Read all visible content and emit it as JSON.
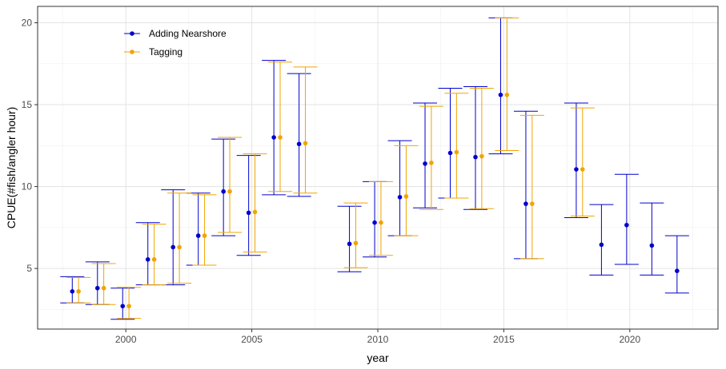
{
  "chart_data": {
    "type": "scatter",
    "xlabel": "year",
    "ylabel": "CPUE(#fish/angler hour)",
    "xlim": [
      1996.5,
      2023.5
    ],
    "ylim": [
      1.3,
      21.0
    ],
    "x_ticks": [
      2000,
      2005,
      2010,
      2015,
      2020
    ],
    "y_ticks": [
      5,
      10,
      15,
      20
    ],
    "x_tick_labels": [
      "2000",
      "2005",
      "2010",
      "2015",
      "2020"
    ],
    "y_tick_labels": [
      "5",
      "10",
      "15",
      "20"
    ],
    "grid": true,
    "legend_position": "top-left",
    "dodge": 0.25,
    "series": [
      {
        "name": "Adding Nearshore",
        "color": "#0000CC",
        "points": [
          {
            "x": 1998,
            "y": 3.6,
            "low": 2.9,
            "high": 4.5
          },
          {
            "x": 1999,
            "y": 3.8,
            "low": 2.8,
            "high": 5.4
          },
          {
            "x": 2000,
            "y": 2.7,
            "low": 1.9,
            "high": 3.8
          },
          {
            "x": 2001,
            "y": 5.55,
            "low": 4.0,
            "high": 7.8
          },
          {
            "x": 2002,
            "y": 6.3,
            "low": 4.0,
            "high": 9.8
          },
          {
            "x": 2003,
            "y": 7.0,
            "low": 5.2,
            "high": 9.6
          },
          {
            "x": 2004,
            "y": 9.7,
            "low": 7.0,
            "high": 12.9
          },
          {
            "x": 2005,
            "y": 8.4,
            "low": 5.8,
            "high": 11.9
          },
          {
            "x": 2006,
            "y": 13.0,
            "low": 9.5,
            "high": 17.7
          },
          {
            "x": 2007,
            "y": 12.6,
            "low": 9.4,
            "high": 16.9
          },
          {
            "x": 2009,
            "y": 6.5,
            "low": 4.8,
            "high": 8.8
          },
          {
            "x": 2010,
            "y": 7.8,
            "low": 5.7,
            "high": 10.3
          },
          {
            "x": 2011,
            "y": 9.35,
            "low": 7.0,
            "high": 12.8
          },
          {
            "x": 2012,
            "y": 11.4,
            "low": 8.7,
            "high": 15.1
          },
          {
            "x": 2013,
            "y": 12.05,
            "low": 9.3,
            "high": 16.0
          },
          {
            "x": 2014,
            "y": 11.8,
            "low": 8.6,
            "high": 16.1
          },
          {
            "x": 2015,
            "y": 15.6,
            "low": 12.0,
            "high": 20.3
          },
          {
            "x": 2016,
            "y": 8.95,
            "low": 5.6,
            "high": 14.6
          },
          {
            "x": 2018,
            "y": 11.05,
            "low": 8.1,
            "high": 15.1
          },
          {
            "x": 2019,
            "y": 6.45,
            "low": 4.6,
            "high": 8.9
          },
          {
            "x": 2020,
            "y": 7.65,
            "low": 5.25,
            "high": 10.75
          },
          {
            "x": 2021,
            "y": 6.4,
            "low": 4.6,
            "high": 9.0
          },
          {
            "x": 2022,
            "y": 4.85,
            "low": 3.5,
            "high": 7.0
          }
        ]
      },
      {
        "name": "Tagging",
        "color": "#F0A500",
        "points": [
          {
            "x": 1998,
            "y": 3.6,
            "low": 2.9,
            "high": 4.45
          },
          {
            "x": 1999,
            "y": 3.8,
            "low": 2.8,
            "high": 5.3
          },
          {
            "x": 2000,
            "y": 2.7,
            "low": 1.95,
            "high": 3.85
          },
          {
            "x": 2001,
            "y": 5.55,
            "low": 4.0,
            "high": 7.7
          },
          {
            "x": 2002,
            "y": 6.3,
            "low": 4.1,
            "high": 9.6
          },
          {
            "x": 2003,
            "y": 7.0,
            "low": 5.2,
            "high": 9.5
          },
          {
            "x": 2004,
            "y": 9.7,
            "low": 7.2,
            "high": 13.0
          },
          {
            "x": 2005,
            "y": 8.45,
            "low": 6.0,
            "high": 12.0
          },
          {
            "x": 2006,
            "y": 13.0,
            "low": 9.7,
            "high": 17.6
          },
          {
            "x": 2007,
            "y": 12.65,
            "low": 9.6,
            "high": 17.3
          },
          {
            "x": 2009,
            "y": 6.55,
            "low": 5.05,
            "high": 9.0
          },
          {
            "x": 2010,
            "y": 7.8,
            "low": 5.8,
            "high": 10.3
          },
          {
            "x": 2011,
            "y": 9.4,
            "low": 7.0,
            "high": 12.5
          },
          {
            "x": 2012,
            "y": 11.45,
            "low": 8.6,
            "high": 14.9
          },
          {
            "x": 2013,
            "y": 12.1,
            "low": 9.3,
            "high": 15.7
          },
          {
            "x": 2014,
            "y": 11.85,
            "low": 8.65,
            "high": 16.0
          },
          {
            "x": 2015,
            "y": 15.6,
            "low": 12.2,
            "high": 20.3
          },
          {
            "x": 2016,
            "y": 8.95,
            "low": 5.6,
            "high": 14.35
          },
          {
            "x": 2018,
            "y": 11.05,
            "low": 8.2,
            "high": 14.8
          }
        ]
      }
    ]
  }
}
